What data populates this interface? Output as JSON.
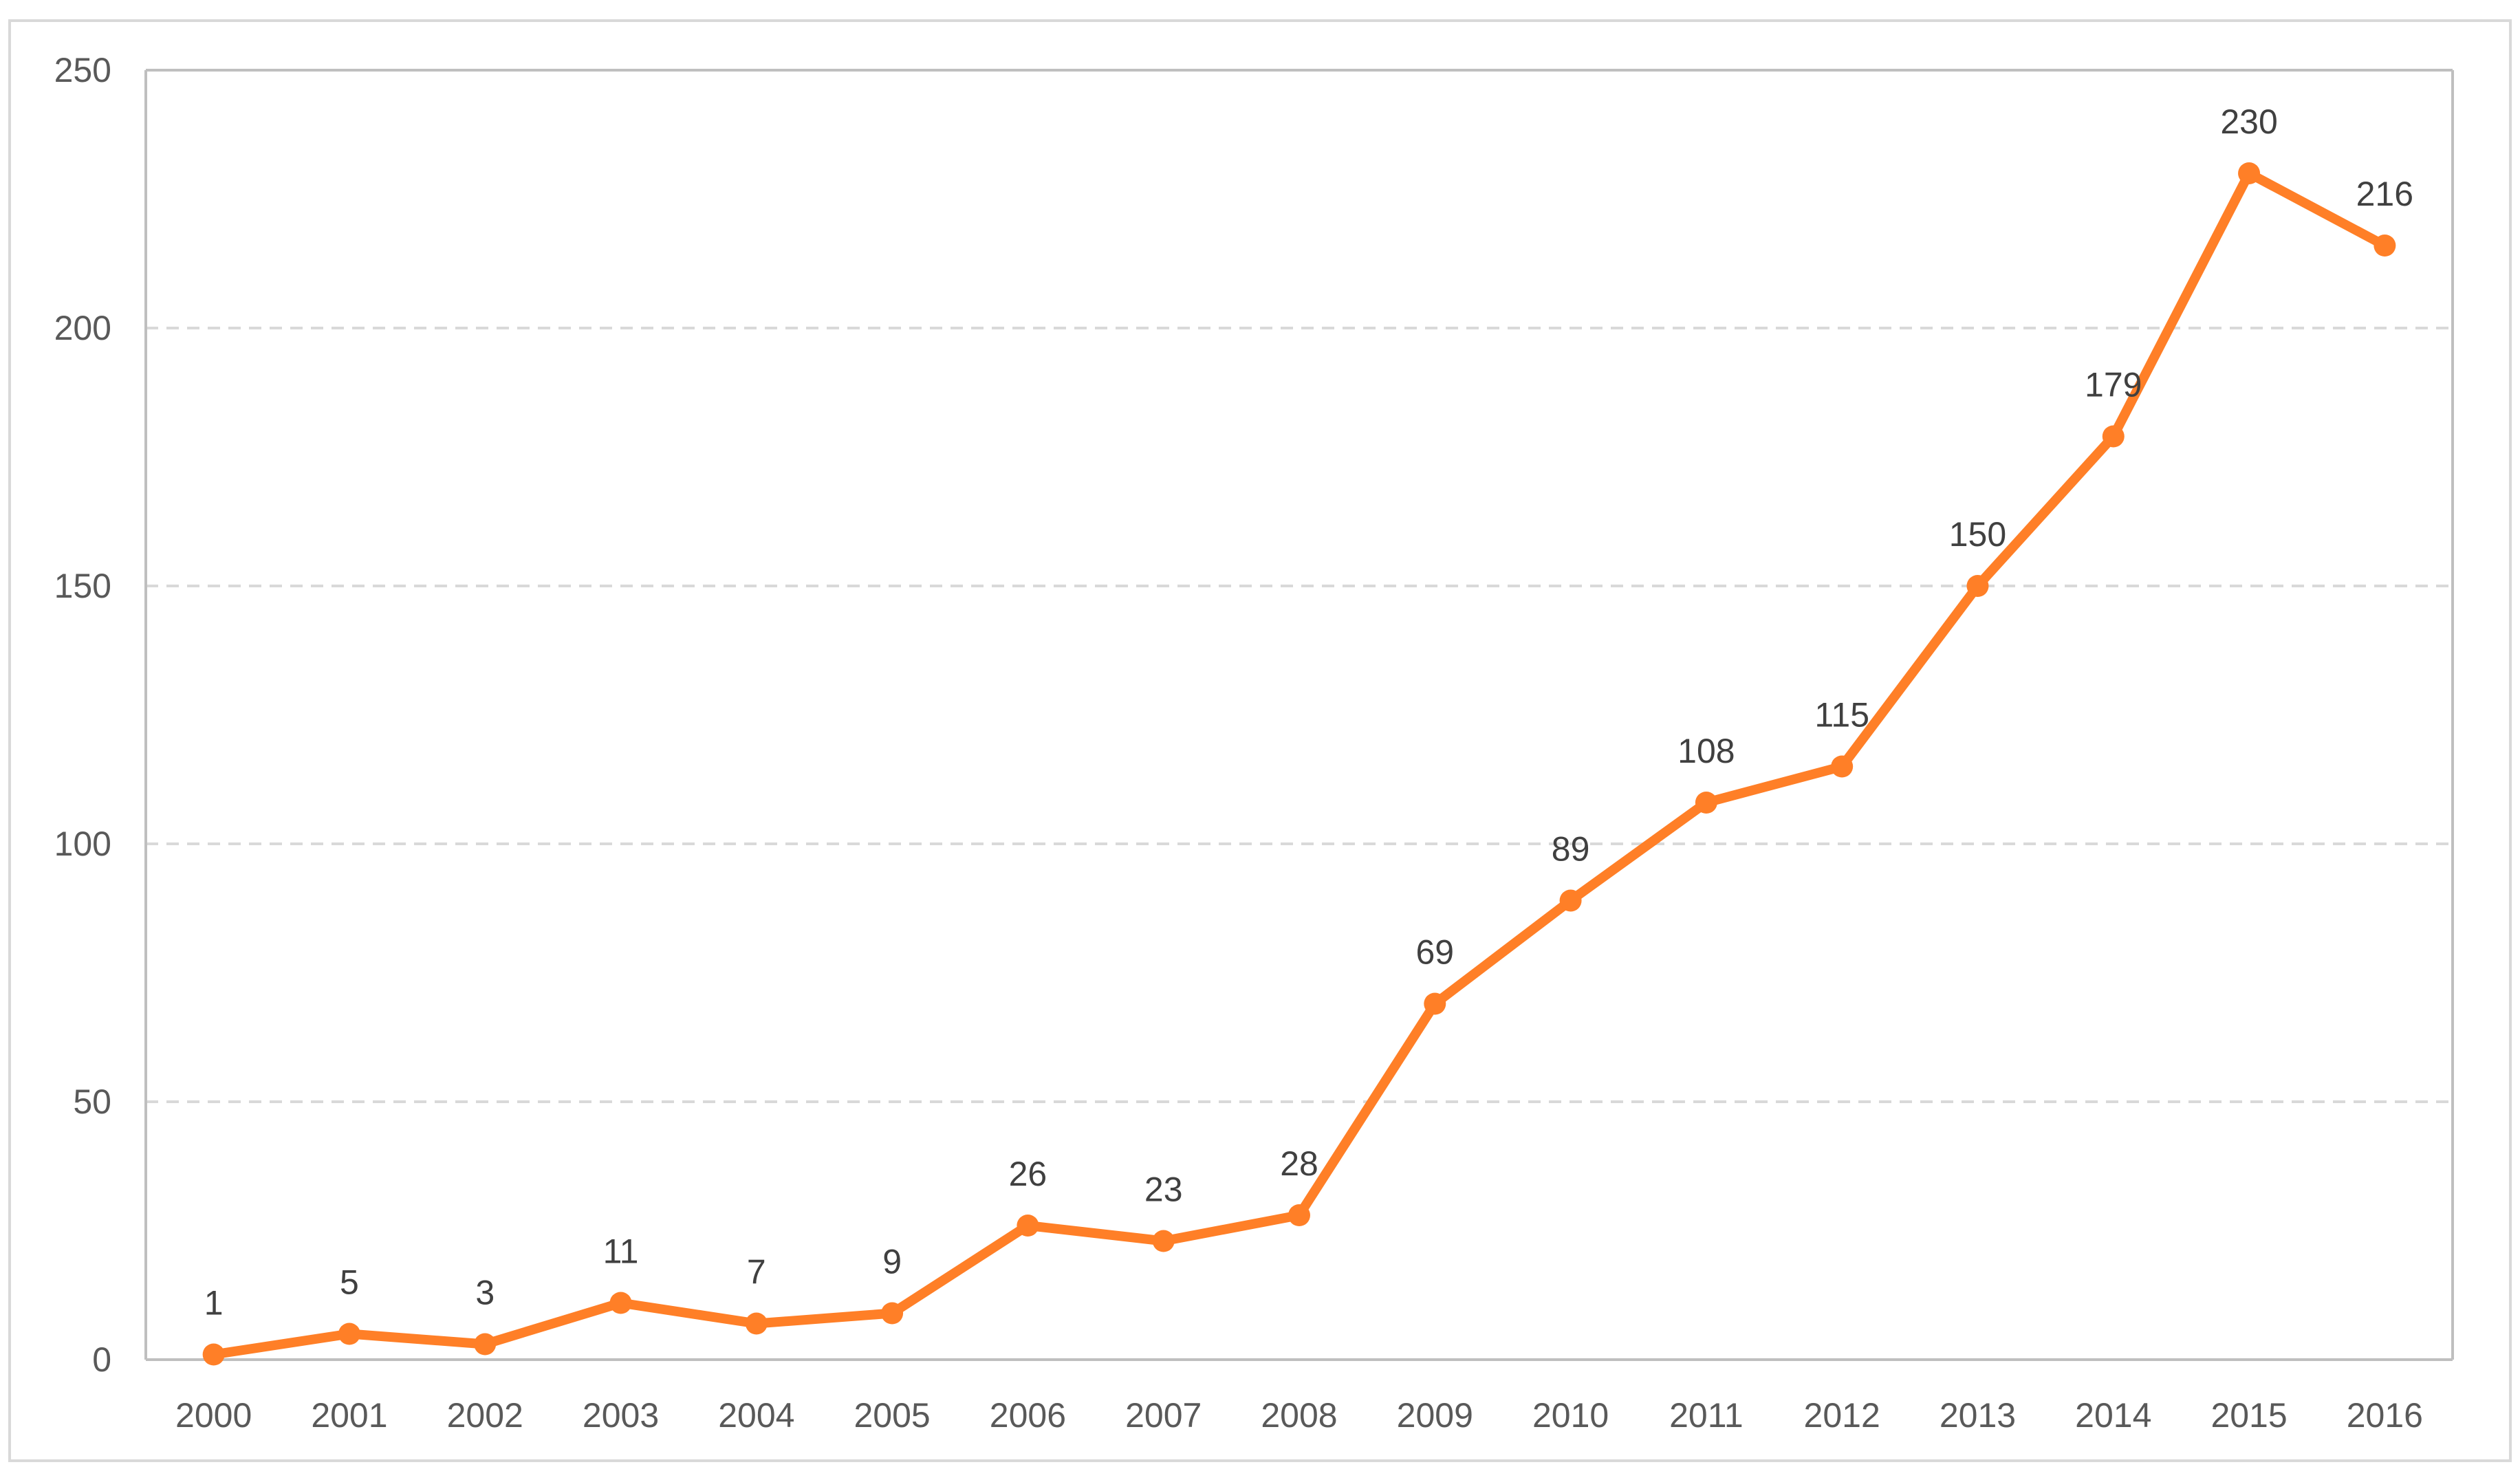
{
  "chart_data": {
    "type": "line",
    "title": "",
    "xlabel": "",
    "ylabel": "",
    "categories": [
      "2000",
      "2001",
      "2002",
      "2003",
      "2004",
      "2005",
      "2006",
      "2007",
      "2008",
      "2009",
      "2010",
      "2011",
      "2012",
      "2013",
      "2014",
      "2015",
      "2016"
    ],
    "series": [
      {
        "name": "",
        "values": [
          1,
          5,
          3,
          11,
          7,
          9,
          26,
          23,
          28,
          69,
          89,
          108,
          115,
          150,
          179,
          230,
          216
        ],
        "color": "#FF7F27",
        "data_labels": true,
        "markers": true
      }
    ],
    "ylim": [
      0,
      250
    ],
    "yticks": [
      0,
      50,
      100,
      150,
      200,
      250
    ],
    "ytick_labels": [
      "0",
      "50",
      "100",
      "150",
      "200",
      "250"
    ],
    "grid": "horizontal-dashed",
    "legend": "none"
  },
  "colors": {
    "series": "#FF7F27",
    "grid": "#D9D9D9",
    "axis": "#BFBFBF",
    "frame": "#D9D9D9",
    "tick_text": "#595959",
    "label_text": "#404040"
  }
}
